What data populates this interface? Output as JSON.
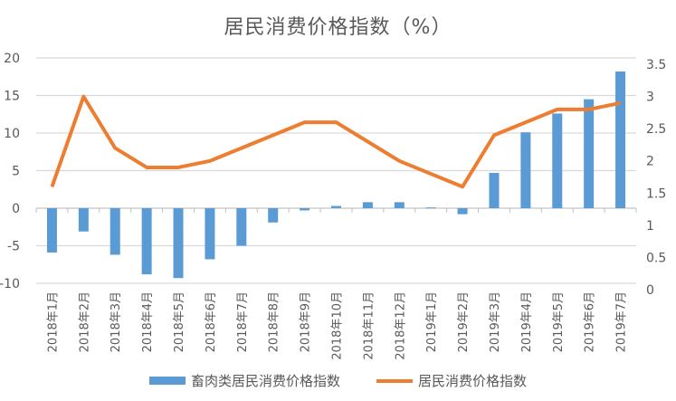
{
  "chart_data": {
    "type": "bar+line",
    "title": "居民消费价格指数（%）",
    "categories": [
      "2018年1月",
      "2018年2月",
      "2018年3月",
      "2018年4月",
      "2018年5月",
      "2018年6月",
      "2018年7月",
      "2018年8月",
      "2018年9月",
      "2018年10月",
      "2018年11月",
      "2018年12月",
      "2019年1月",
      "2019年2月",
      "2019年3月",
      "2019年4月",
      "2019年5月",
      "2019年6月",
      "2019年7月"
    ],
    "series": [
      {
        "name": "畜肉类居民消费价格指数",
        "type": "bar",
        "axis": "left",
        "color": "#5b9bd5",
        "values": [
          -5.9,
          -3.1,
          -6.2,
          -8.8,
          -9.3,
          -6.8,
          -5.0,
          -1.9,
          -0.3,
          0.3,
          0.8,
          0.8,
          0.1,
          -0.8,
          4.7,
          10.1,
          12.6,
          14.5,
          18.2
        ]
      },
      {
        "name": "居民消费价格指数",
        "type": "line",
        "axis": "right",
        "color": "#ed7d31",
        "values": [
          1.5,
          2.9,
          2.1,
          1.8,
          1.8,
          1.9,
          2.1,
          2.3,
          2.5,
          2.5,
          2.2,
          1.9,
          1.7,
          1.5,
          2.3,
          2.5,
          2.7,
          2.7,
          2.8
        ]
      }
    ],
    "ylim_left": [
      -10,
      20
    ],
    "yticks_left": [
      "-10",
      "-5",
      "0",
      "5",
      "10",
      "15",
      "20"
    ],
    "ylim_right": [
      0,
      3.5
    ],
    "yticks_right": [
      "0",
      "0.5",
      "1",
      "1.5",
      "2",
      "2.5",
      "3",
      "3.5"
    ],
    "grid": true,
    "legend": "bottom"
  }
}
